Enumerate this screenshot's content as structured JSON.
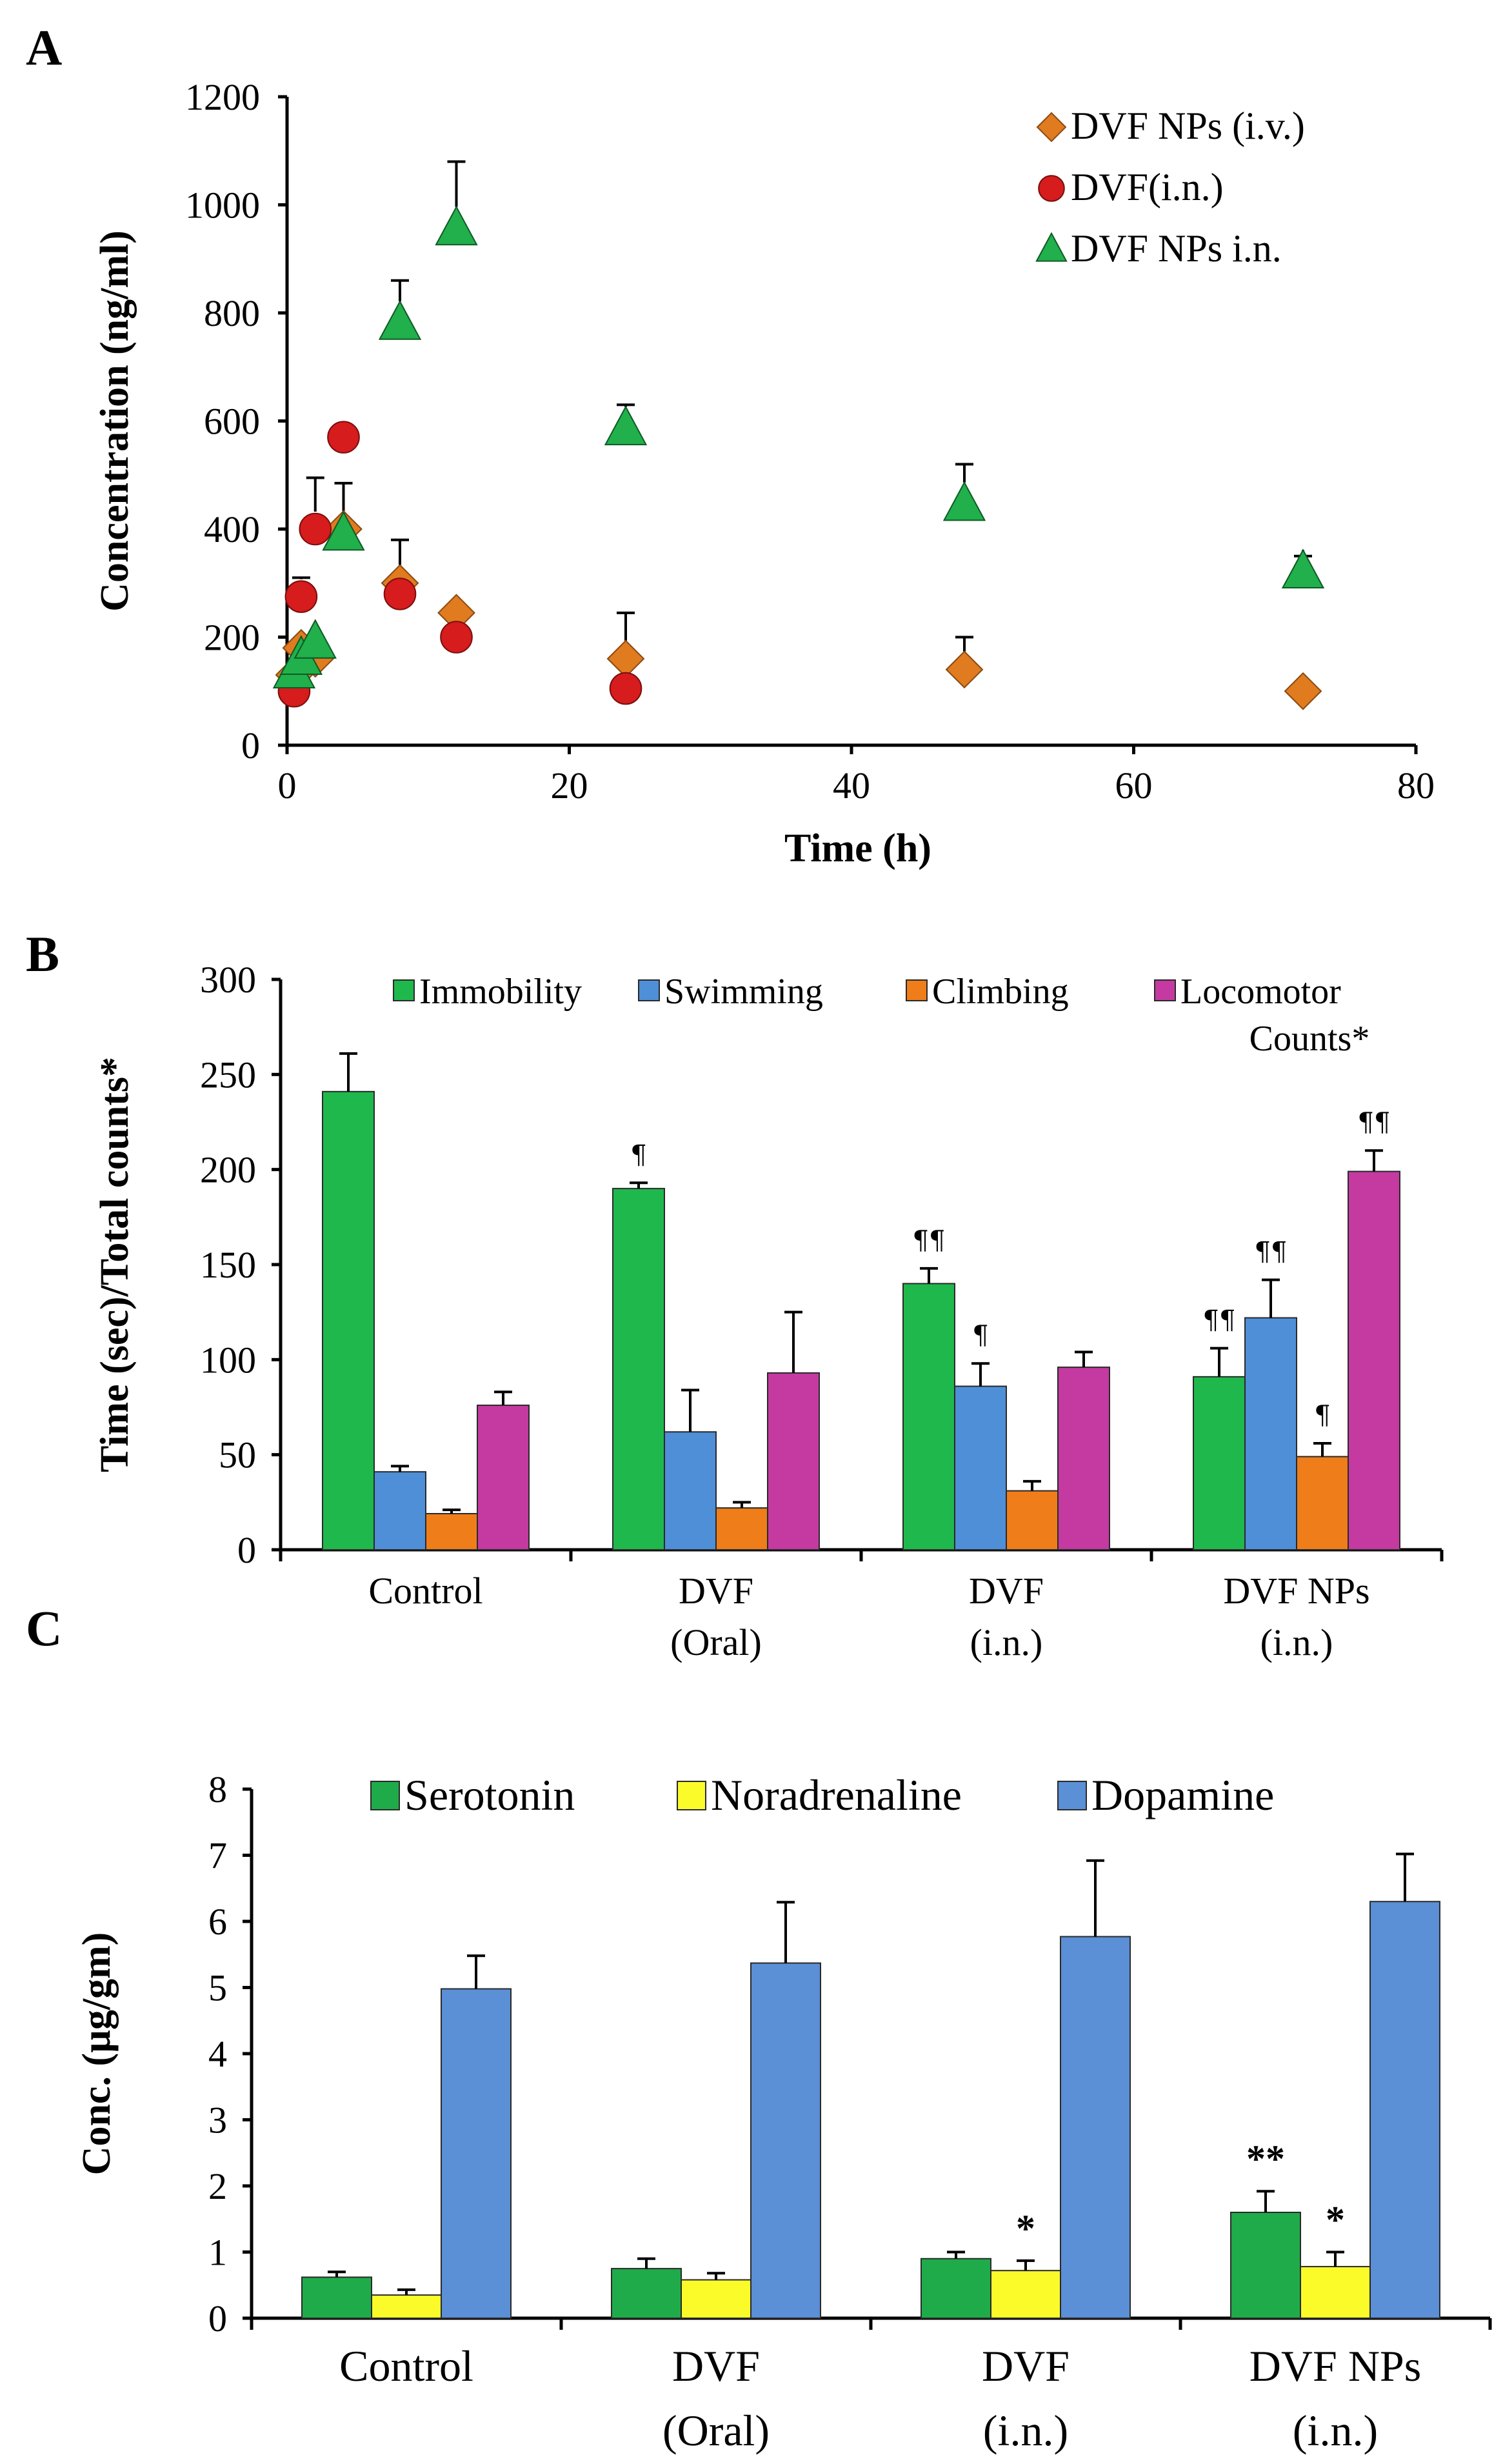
{
  "chart_data": [
    {
      "panel": "A",
      "type": "scatter",
      "title": "",
      "xlabel": "Time (h)",
      "ylabel": "Concentration (ng/ml)",
      "xlim": [
        0,
        80
      ],
      "ylim": [
        0,
        1200
      ],
      "xticks": [
        "0",
        "20",
        "40",
        "60",
        "80"
      ],
      "yticks": [
        "0",
        "200",
        "400",
        "600",
        "800",
        "1000",
        "1200"
      ],
      "legend_position": "top-right",
      "series": [
        {
          "name": "DVF NPs (i.v.)",
          "marker": "diamond",
          "color": "#e07b20",
          "x": [
            0.5,
            1,
            2,
            4,
            8,
            12,
            24,
            48,
            72
          ],
          "y": [
            130,
            180,
            160,
            400,
            300,
            245,
            160,
            140,
            100
          ],
          "err": [
            0,
            0,
            0,
            85,
            80,
            0,
            85,
            60,
            0
          ]
        },
        {
          "name": "DVF(i.n.)",
          "marker": "circle",
          "color": "#d61c1c",
          "x": [
            0.5,
            1,
            2,
            4,
            8,
            12,
            24
          ],
          "y": [
            100,
            275,
            400,
            570,
            280,
            200,
            105
          ],
          "err": [
            0,
            35,
            95,
            0,
            0,
            0,
            0
          ]
        },
        {
          "name": "DVF NPs i.n.",
          "marker": "triangle",
          "color": "#21b04b",
          "x": [
            0.5,
            1,
            2,
            4,
            8,
            12,
            24,
            48,
            72
          ],
          "y": [
            135,
            160,
            190,
            390,
            780,
            955,
            585,
            445,
            320
          ],
          "err": [
            0,
            0,
            0,
            0,
            80,
            125,
            45,
            75,
            30
          ]
        }
      ]
    },
    {
      "panel": "B",
      "type": "bar",
      "title": "",
      "xlabel": "",
      "ylabel": "Time (sec)/Total counts*",
      "ylim": [
        0,
        300
      ],
      "yticks": [
        "0",
        "50",
        "100",
        "150",
        "200",
        "250",
        "300"
      ],
      "categories": [
        [
          "Control"
        ],
        [
          "DVF",
          "(Oral)"
        ],
        [
          "DVF",
          "(i.n.)"
        ],
        [
          "DVF NPs",
          "(i.n.)"
        ]
      ],
      "legend_position": "top",
      "series": [
        {
          "name": "Immobility",
          "color": "#1fb84c",
          "values": [
            241,
            190,
            140,
            91
          ],
          "err": [
            20,
            3,
            8,
            15
          ],
          "marks": [
            "",
            "¶",
            "¶¶",
            "¶¶"
          ]
        },
        {
          "name": "Swimming",
          "color": "#4e8fd8",
          "values": [
            41,
            62,
            86,
            122
          ],
          "err": [
            3,
            22,
            12,
            20
          ],
          "marks": [
            "",
            "",
            "¶",
            "¶¶"
          ]
        },
        {
          "name": "Climbing",
          "color": "#ef7d1a",
          "values": [
            19,
            22,
            31,
            49
          ],
          "err": [
            2,
            3,
            5,
            7
          ],
          "marks": [
            "",
            "",
            "",
            "¶"
          ]
        },
        {
          "name": "Locomotor Counts*",
          "color": "#c43aa1",
          "values": [
            76,
            93,
            96,
            199
          ],
          "err": [
            7,
            32,
            8,
            11
          ],
          "marks": [
            "",
            "",
            "",
            "¶¶"
          ]
        }
      ],
      "legend_lines": [
        [
          "Locomotor",
          "Counts*"
        ]
      ]
    },
    {
      "panel": "C",
      "type": "bar",
      "title": "",
      "xlabel": "",
      "ylabel": "Conc. (µg/gm)",
      "ylim": [
        0,
        8
      ],
      "yticks": [
        "0",
        "1",
        "2",
        "3",
        "4",
        "5",
        "6",
        "7",
        "8"
      ],
      "categories": [
        [
          "Control"
        ],
        [
          "DVF",
          "(Oral)"
        ],
        [
          "DVF",
          "(i.n.)"
        ],
        [
          "DVF NPs",
          "(i.n.)"
        ]
      ],
      "legend_position": "top",
      "series": [
        {
          "name": "Serotonin",
          "color": "#1fab4a",
          "values": [
            0.62,
            0.75,
            0.9,
            1.6
          ],
          "err": [
            0.08,
            0.15,
            0.1,
            0.32
          ],
          "marks": [
            "",
            "",
            "",
            "**"
          ]
        },
        {
          "name": "Noradrenaline",
          "color": "#fbfb2a",
          "values": [
            0.35,
            0.58,
            0.72,
            0.78
          ],
          "err": [
            0.08,
            0.1,
            0.15,
            0.22
          ],
          "marks": [
            "",
            "",
            "*",
            "*"
          ]
        },
        {
          "name": "Dopamine",
          "color": "#5b8fd6",
          "values": [
            4.98,
            5.37,
            5.77,
            6.3
          ],
          "err": [
            0.5,
            0.92,
            1.15,
            0.72
          ],
          "marks": [
            "",
            "",
            "",
            ""
          ]
        }
      ]
    }
  ],
  "panels": {
    "a": {
      "label": "A"
    },
    "b": {
      "label": "B"
    },
    "c": {
      "label": "C"
    }
  }
}
